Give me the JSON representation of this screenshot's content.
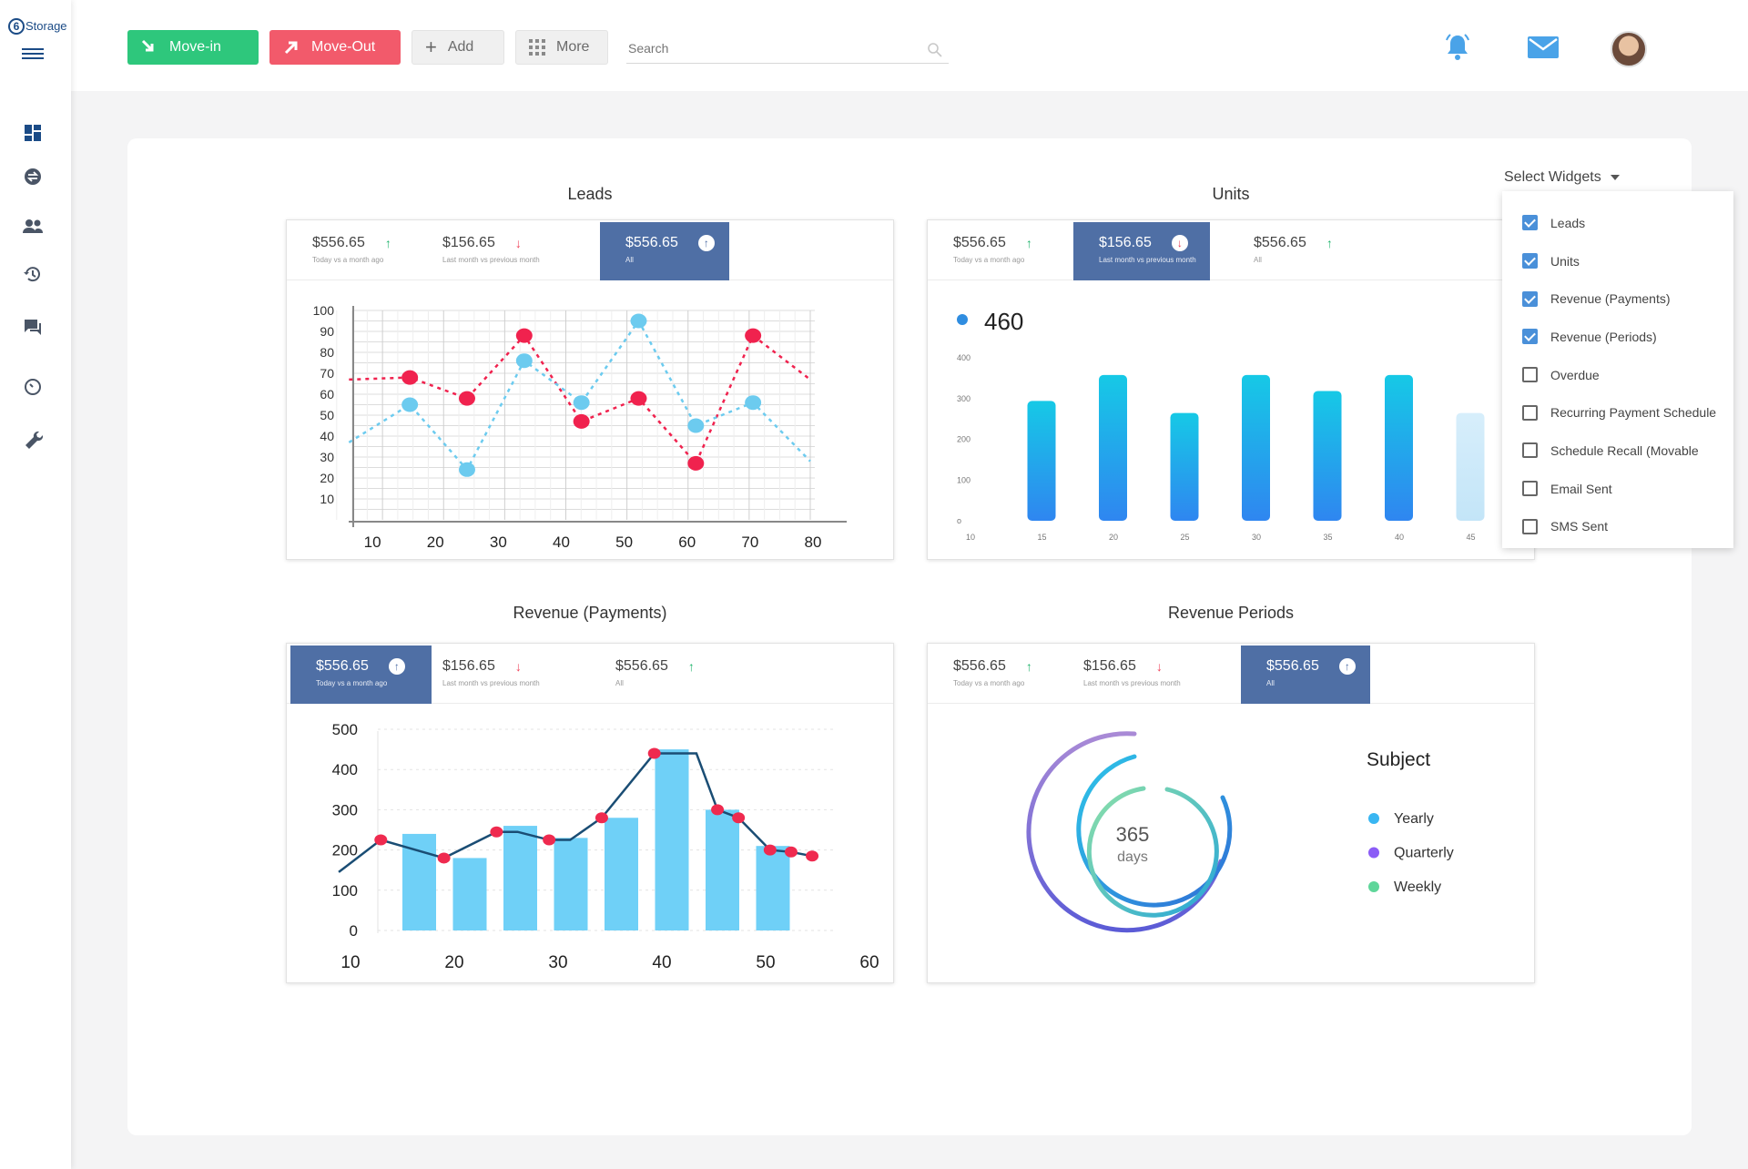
{
  "app": {
    "logo_text": "Storage"
  },
  "toolbar": {
    "movein_label": "Move-in",
    "moveout_label": "Move-Out",
    "add_label": "Add",
    "more_label": "More",
    "search_placeholder": "Search"
  },
  "colors": {
    "accent": "#4f6fa5",
    "green": "#2ec77c",
    "red": "#f25a6b"
  },
  "widget_menu": {
    "label": "Select Widgets",
    "items": [
      {
        "label": "Leads",
        "checked": true
      },
      {
        "label": "Units",
        "checked": true
      },
      {
        "label": "Revenue (Payments)",
        "checked": true
      },
      {
        "label": "Revenue (Periods)",
        "checked": true
      },
      {
        "label": "Overdue",
        "checked": false
      },
      {
        "label": "Recurring Payment Schedule",
        "checked": false
      },
      {
        "label": "Schedule Recall (Movable",
        "checked": false
      },
      {
        "label": "Email Sent",
        "checked": false
      },
      {
        "label": "SMS Sent",
        "checked": false
      }
    ]
  },
  "panels": {
    "leads": {
      "title": "Leads",
      "stats": [
        {
          "value": "$556.65",
          "sub": "Today vs a month ago",
          "trend": "up"
        },
        {
          "value": "$156.65",
          "sub": "Last month vs previous month",
          "trend": "down"
        },
        {
          "value": "$556.65",
          "sub": "All",
          "trend": "up"
        }
      ]
    },
    "units": {
      "title": "Units",
      "big_value": "460",
      "stats": [
        {
          "value": "$556.65",
          "sub": "Today vs a month ago",
          "trend": "up"
        },
        {
          "value": "$156.65",
          "sub": "Last month vs previous month",
          "trend": "down"
        },
        {
          "value": "$556.65",
          "sub": "All",
          "trend": "up"
        }
      ]
    },
    "payments": {
      "title": "Revenue (Payments)",
      "stats": [
        {
          "value": "$556.65",
          "sub": "Today vs a month ago",
          "trend": "up"
        },
        {
          "value": "$156.65",
          "sub": "Last month vs previous month",
          "trend": "down"
        },
        {
          "value": "$556.65",
          "sub": "All",
          "trend": "up"
        }
      ]
    },
    "periods": {
      "title": "Revenue Periods",
      "center_value": "365",
      "center_unit": "days",
      "legend_title": "Subject",
      "stats": [
        {
          "value": "$556.65",
          "sub": "Today vs a month ago",
          "trend": "up"
        },
        {
          "value": "$156.65",
          "sub": "Last month vs previous month",
          "trend": "down"
        },
        {
          "value": "$556.65",
          "sub": "All",
          "trend": "up"
        }
      ]
    }
  },
  "chart_data": [
    {
      "type": "line",
      "x_ticks": [
        10,
        20,
        30,
        40,
        50,
        60,
        70,
        80
      ],
      "y_ticks": [
        10,
        20,
        30,
        40,
        50,
        60,
        70,
        80,
        90,
        100
      ],
      "xlim": [
        0,
        80
      ],
      "ylim": [
        0,
        100
      ],
      "grid": true,
      "series": [
        {
          "color": "#f0224e",
          "x": [
            0,
            10,
            20,
            30,
            40,
            50,
            60,
            70,
            80
          ],
          "y": [
            67,
            68,
            58,
            88,
            47,
            58,
            27,
            88,
            67
          ]
        },
        {
          "color": "#6ccbef",
          "x": [
            0,
            10,
            20,
            30,
            40,
            50,
            60,
            70,
            80
          ],
          "y": [
            37,
            55,
            24,
            76,
            56,
            95,
            45,
            56,
            28
          ]
        }
      ]
    },
    {
      "type": "bar",
      "categories": [
        "10",
        "15",
        "20",
        "25",
        "30",
        "35",
        "40",
        "45"
      ],
      "y_ticks": [
        0,
        100,
        200,
        300,
        400
      ],
      "ylim": [
        0,
        400
      ],
      "values": [
        0,
        300,
        365,
        270,
        365,
        325,
        365,
        270
      ]
    },
    {
      "type": "bar",
      "x_ticks": [
        10,
        20,
        30,
        40,
        50,
        60
      ],
      "y_ticks": [
        0,
        100,
        200,
        300,
        400,
        500
      ],
      "xlim": [
        10,
        60
      ],
      "ylim": [
        0,
        500
      ],
      "series": [
        {
          "type": "bar",
          "x": [
            17,
            22,
            27,
            32,
            37,
            42,
            47,
            52
          ],
          "values": [
            240,
            180,
            260,
            230,
            280,
            450,
            300,
            210
          ]
        },
        {
          "type": "line",
          "x": [
            10,
            14,
            20,
            25,
            27,
            30,
            32,
            35,
            40,
            44,
            46,
            48,
            51,
            53,
            55
          ],
          "y": [
            145,
            225,
            180,
            245,
            245,
            225,
            225,
            280,
            440,
            440,
            300,
            280,
            200,
            195,
            185
          ]
        }
      ]
    },
    {
      "type": "pie",
      "title": "Subject",
      "series": [
        {
          "name": "Yearly",
          "color": "#39b6f2"
        },
        {
          "name": "Quarterly",
          "color": "#8b5cf6"
        },
        {
          "name": "Weekly",
          "color": "#5fd69a"
        }
      ]
    }
  ]
}
